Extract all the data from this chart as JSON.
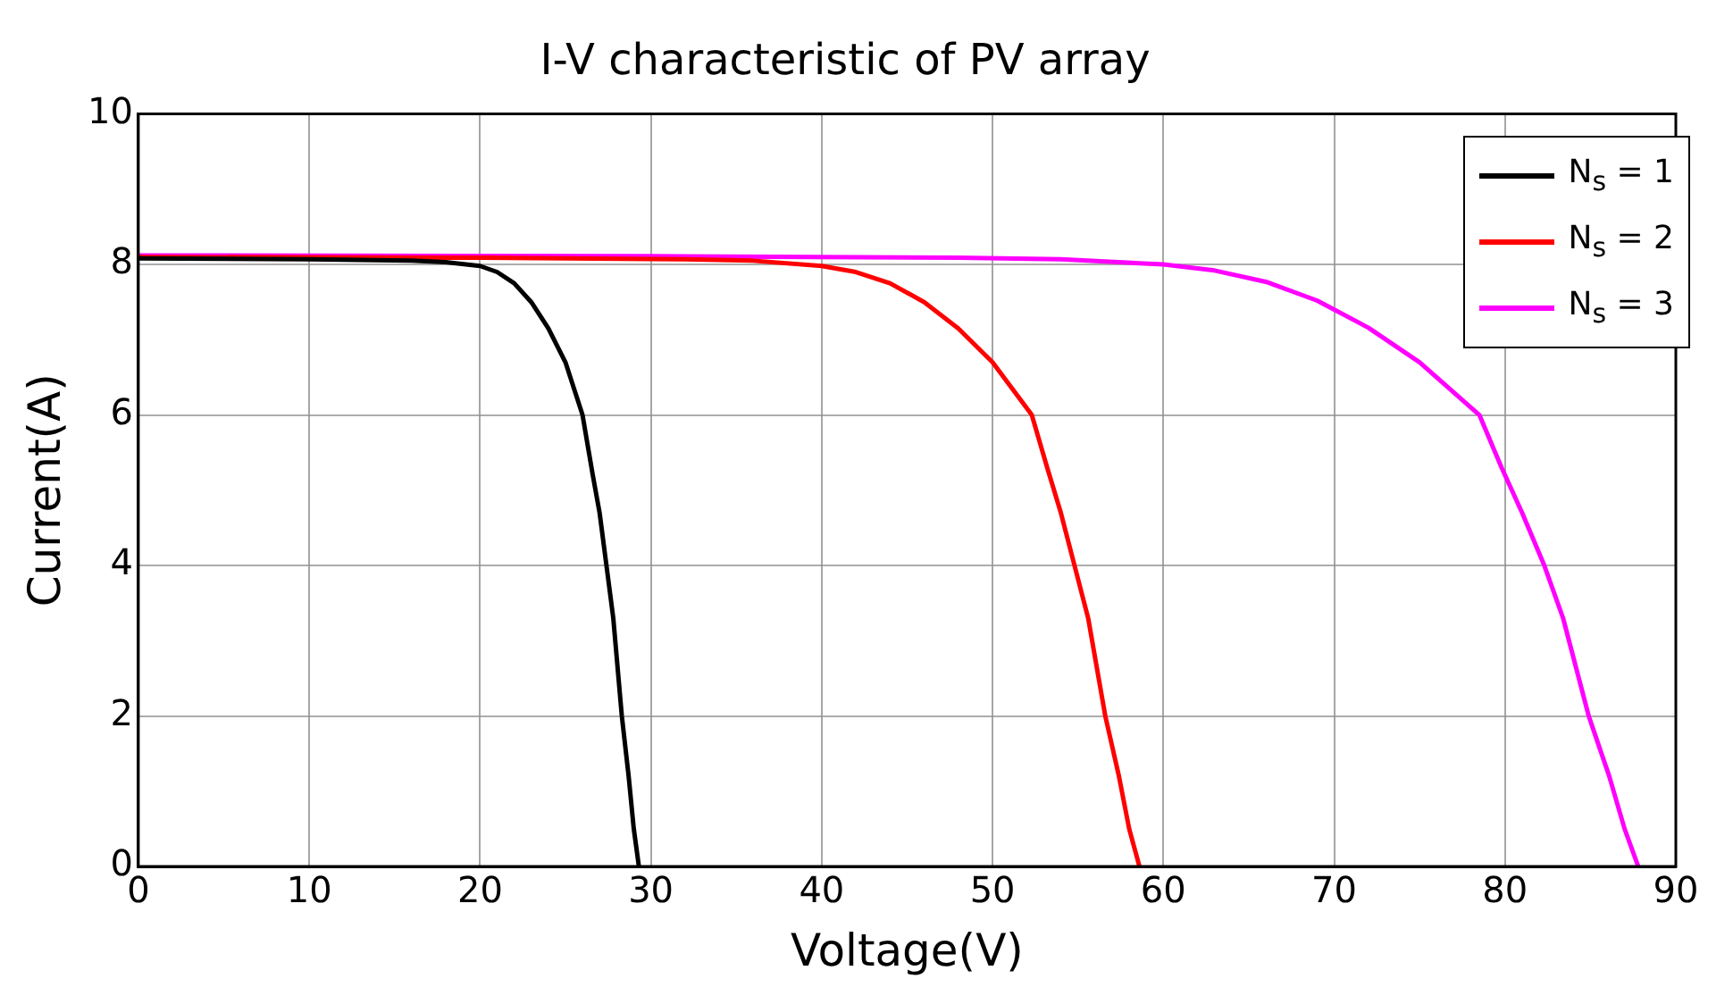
{
  "chart_data": {
    "type": "line",
    "title": "I-V characteristic of PV array",
    "xlabel": "Voltage(V)",
    "ylabel": "Current(A)",
    "xlim": [
      0,
      90
    ],
    "ylim": [
      0,
      10
    ],
    "xticks": [
      0,
      10,
      20,
      30,
      40,
      50,
      60,
      70,
      80,
      90
    ],
    "yticks": [
      0,
      2,
      4,
      6,
      8,
      10
    ],
    "grid": true,
    "legend": "top right",
    "marker": "none",
    "line_style": "solid",
    "series": [
      {
        "name": "N$_{s}$ = 1",
        "color": "#000000",
        "x": [
          0,
          10,
          16,
          18,
          20,
          21,
          22,
          23,
          24,
          25,
          26,
          26.6,
          27,
          27.4,
          27.8,
          28.3,
          28.7,
          29,
          29.3
        ],
        "values": [
          8.08,
          8.07,
          8.05,
          8.03,
          7.98,
          7.9,
          7.75,
          7.5,
          7.15,
          6.7,
          6.0,
          5.2,
          4.7,
          4.0,
          3.3,
          2.0,
          1.2,
          0.5,
          0
        ]
      },
      {
        "name": "N$_{s}$ = 2",
        "color": "#ff0000",
        "x": [
          0,
          20,
          32,
          36,
          40,
          42,
          44,
          46,
          48,
          50,
          52.3,
          53.2,
          54,
          54.8,
          55.6,
          56.6,
          57.4,
          58,
          58.6
        ],
        "values": [
          8.1,
          8.09,
          8.07,
          8.05,
          7.98,
          7.9,
          7.75,
          7.5,
          7.15,
          6.7,
          6.0,
          5.3,
          4.7,
          4.0,
          3.3,
          2.0,
          1.2,
          0.5,
          0
        ]
      },
      {
        "name": "N$_{s}$ = 3",
        "color": "#ff00ff",
        "x": [
          0,
          30,
          48,
          54,
          60,
          63,
          66,
          69,
          72,
          75,
          78.5,
          79.8,
          81,
          82.3,
          83.4,
          84.9,
          86.1,
          87,
          87.8
        ],
        "values": [
          8.12,
          8.11,
          8.09,
          8.07,
          8.0,
          7.92,
          7.77,
          7.52,
          7.16,
          6.7,
          6.0,
          5.3,
          4.7,
          4.0,
          3.3,
          2.0,
          1.2,
          0.5,
          0
        ]
      }
    ]
  }
}
